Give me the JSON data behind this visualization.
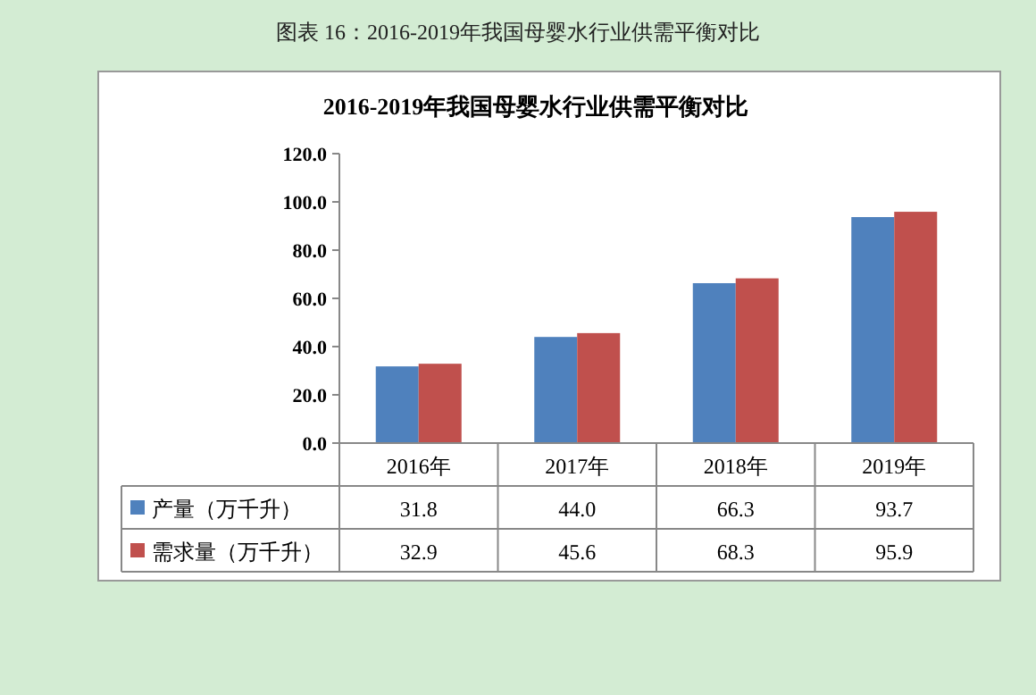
{
  "chart_data": {
    "type": "bar",
    "title": "图表 16：2016-2019年我国母婴水行业供需平衡对比",
    "subtitle": "2016-2019年我国母婴水行业供需平衡对比",
    "categories": [
      "2016年",
      "2017年",
      "2018年",
      "2019年"
    ],
    "series": [
      {
        "name": "产量（万千升）",
        "color": "#4f81bd",
        "values": [
          31.8,
          44.0,
          66.3,
          93.7
        ],
        "value_labels": [
          "31.8",
          "44.0",
          "66.3",
          "93.7"
        ]
      },
      {
        "name": "需求量（万千升）",
        "color": "#c0504d",
        "values": [
          32.9,
          45.6,
          68.3,
          95.9
        ],
        "value_labels": [
          "32.9",
          "45.6",
          "68.3",
          "95.9"
        ]
      }
    ],
    "ylim": [
      0,
      120
    ],
    "yticks": [
      {
        "value": 0,
        "label": "0.0"
      },
      {
        "value": 20,
        "label": "20.0"
      },
      {
        "value": 40,
        "label": "40.0"
      },
      {
        "value": 60,
        "label": "60.0"
      },
      {
        "value": 80,
        "label": "80.0"
      },
      {
        "value": 100,
        "label": "100.0"
      },
      {
        "value": 120,
        "label": "120.0"
      }
    ],
    "legend": "bottom",
    "grid": false
  }
}
